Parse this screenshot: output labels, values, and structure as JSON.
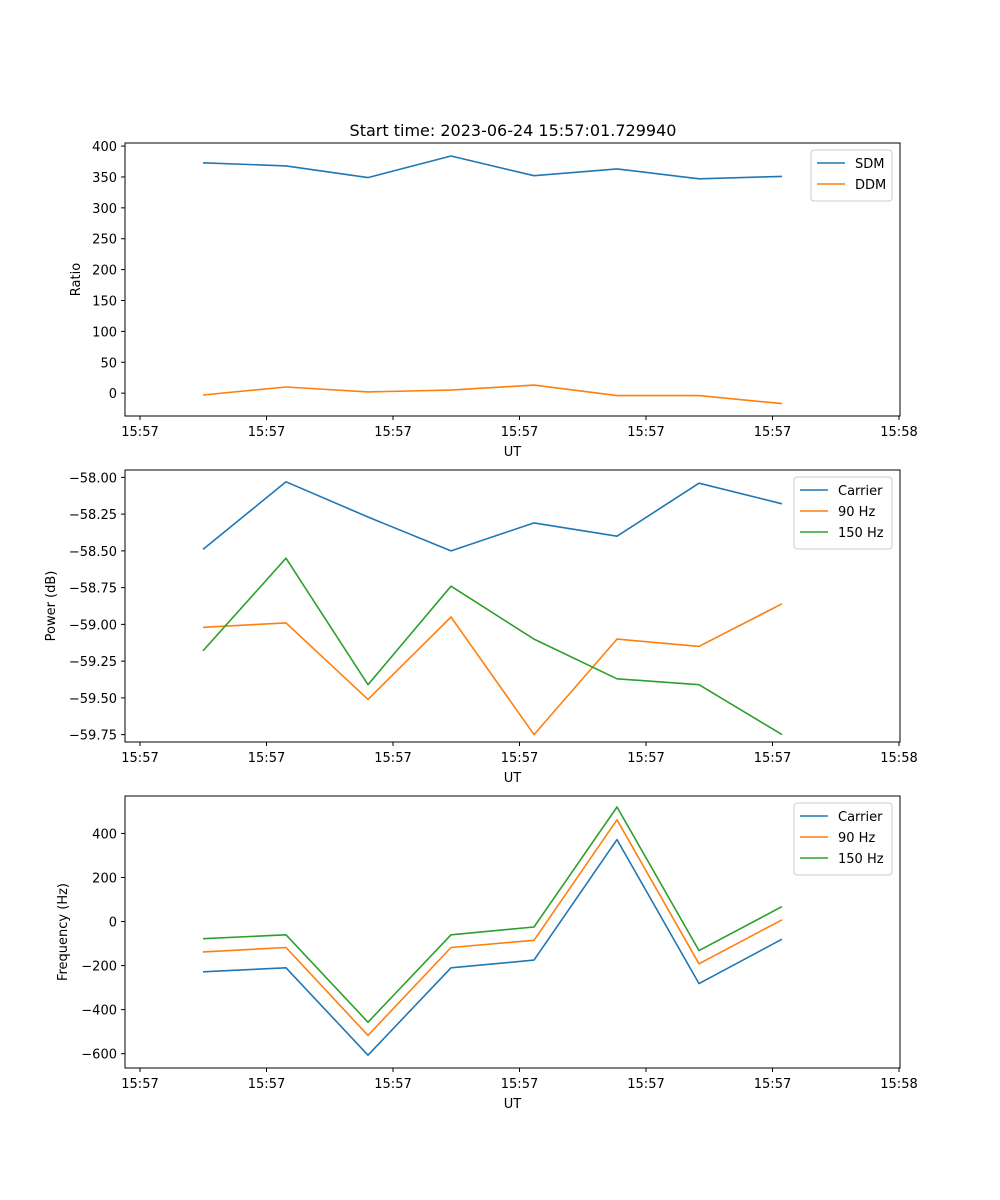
{
  "title": "Start time: 2023-06-24 15:57:01.729940",
  "chart_data": [
    {
      "type": "line",
      "xlabel": "UT",
      "ylabel": "Ratio",
      "x_tick_labels": [
        "15:57",
        "15:57",
        "15:57",
        "15:57",
        "15:57",
        "15:57",
        "15:57"
      ],
      "x_last_tick_label": "15:58",
      "yticks": [
        0,
        50,
        100,
        150,
        200,
        250,
        300,
        350,
        400
      ],
      "ylim": [
        -37,
        405
      ],
      "legend_position": "upper-right",
      "series": [
        {
          "name": "SDM",
          "color": "#1f77b4",
          "values": [
            373,
            368,
            349,
            384,
            352,
            363,
            347,
            351
          ]
        },
        {
          "name": "DDM",
          "color": "#ff7f0e",
          "values": [
            -3,
            10,
            2,
            5,
            13,
            -4,
            -4,
            -17
          ]
        }
      ]
    },
    {
      "type": "line",
      "xlabel": "UT",
      "ylabel": "Power (dB)",
      "x_tick_labels": [
        "15:57",
        "15:57",
        "15:57",
        "15:57",
        "15:57",
        "15:57",
        "15:57"
      ],
      "x_last_tick_label": "15:58",
      "yticks": [
        -59.75,
        -59.5,
        -59.25,
        -59.0,
        -58.75,
        -58.5,
        -58.25,
        -58.0
      ],
      "ytick_labels": [
        "−59.75",
        "−59.50",
        "−59.25",
        "−59.00",
        "−58.75",
        "−58.50",
        "−58.25",
        "−58.00"
      ],
      "ylim": [
        -59.8,
        -57.95
      ],
      "legend_position": "upper-right",
      "series": [
        {
          "name": "Carrier",
          "color": "#1f77b4",
          "values": [
            -58.49,
            -58.03,
            -58.27,
            -58.5,
            -58.31,
            -58.4,
            -58.04,
            -58.18
          ]
        },
        {
          "name": "90 Hz",
          "color": "#ff7f0e",
          "values": [
            -59.02,
            -58.99,
            -59.51,
            -58.95,
            -59.75,
            -59.1,
            -59.15,
            -58.86
          ]
        },
        {
          "name": "150 Hz",
          "color": "#2ca02c",
          "values": [
            -59.18,
            -58.55,
            -59.41,
            -58.74,
            -59.1,
            -59.37,
            -59.41,
            -59.75
          ]
        }
      ]
    },
    {
      "type": "line",
      "xlabel": "UT",
      "ylabel": "Frequency (Hz)",
      "x_tick_labels": [
        "15:57",
        "15:57",
        "15:57",
        "15:57",
        "15:57",
        "15:57",
        "15:57"
      ],
      "x_last_tick_label": "15:58",
      "yticks": [
        -600,
        -400,
        -200,
        0,
        200,
        400
      ],
      "ytick_labels": [
        "−600",
        "−400",
        "−200",
        "0",
        "200",
        "400"
      ],
      "ylim": [
        -665,
        570
      ],
      "legend_position": "upper-right",
      "series": [
        {
          "name": "Carrier",
          "color": "#1f77b4",
          "values": [
            -228,
            -210,
            -607,
            -210,
            -175,
            372,
            -282,
            -80
          ]
        },
        {
          "name": "90 Hz",
          "color": "#ff7f0e",
          "values": [
            -138,
            -118,
            -517,
            -118,
            -85,
            462,
            -192,
            8
          ]
        },
        {
          "name": "150 Hz",
          "color": "#2ca02c",
          "values": [
            -78,
            -60,
            -457,
            -60,
            -25,
            520,
            -132,
            68
          ]
        }
      ]
    }
  ]
}
